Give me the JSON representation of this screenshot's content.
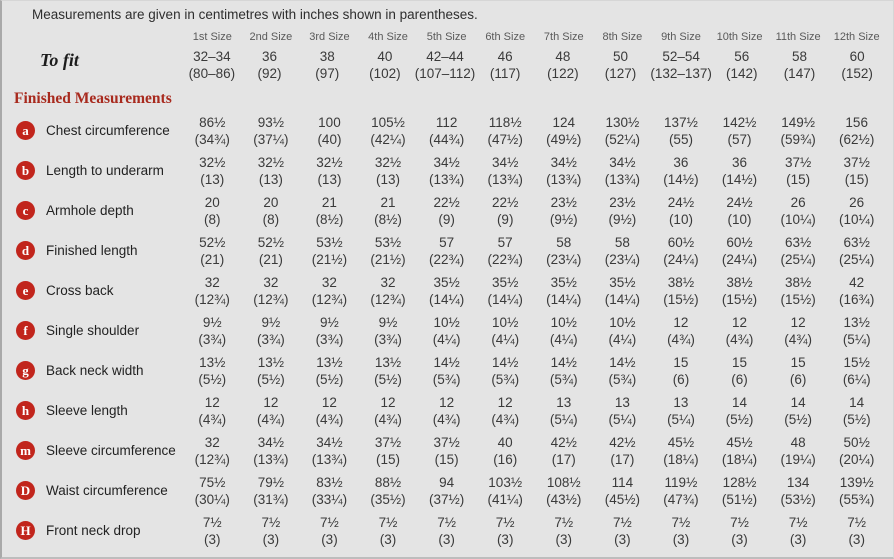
{
  "note": "Measurements are given in centimetres with inches shown in parentheses.",
  "size_headers": [
    "1st Size",
    "2nd Size",
    "3rd Size",
    "4th Size",
    "5th Size",
    "6th Size",
    "7th Size",
    "8th Size",
    "9th Size",
    "10th Size",
    "11th Size",
    "12th Size"
  ],
  "to_fit": {
    "label": "To fit",
    "values": [
      "32–34",
      "36",
      "38",
      "40",
      "42–44",
      "46",
      "48",
      "50",
      "52–54",
      "56",
      "58",
      "60"
    ],
    "parens": [
      "(80–86)",
      "(92)",
      "(97)",
      "(102)",
      "(107–112)",
      "(117)",
      "(122)",
      "(127)",
      "(132–137)",
      "(142)",
      "(147)",
      "(152)"
    ]
  },
  "section_title": "Finished Measurements",
  "rows": [
    {
      "badge": "a",
      "label": "Chest circumference",
      "values": [
        "86½",
        "93½",
        "100",
        "105½",
        "112",
        "118½",
        "124",
        "130½",
        "137½",
        "142½",
        "149½",
        "156"
      ],
      "parens": [
        "(34¾)",
        "(37¼)",
        "(40)",
        "(42¼)",
        "(44¾)",
        "(47½)",
        "(49½)",
        "(52¼)",
        "(55)",
        "(57)",
        "(59¾)",
        "(62½)"
      ]
    },
    {
      "badge": "b",
      "label": "Length to underarm",
      "values": [
        "32½",
        "32½",
        "32½",
        "32½",
        "34½",
        "34½",
        "34½",
        "34½",
        "36",
        "36",
        "37½",
        "37½"
      ],
      "parens": [
        "(13)",
        "(13)",
        "(13)",
        "(13)",
        "(13¾)",
        "(13¾)",
        "(13¾)",
        "(13¾)",
        "(14½)",
        "(14½)",
        "(15)",
        "(15)"
      ]
    },
    {
      "badge": "c",
      "label": "Armhole depth",
      "values": [
        "20",
        "20",
        "21",
        "21",
        "22½",
        "22½",
        "23½",
        "23½",
        "24½",
        "24½",
        "26",
        "26"
      ],
      "parens": [
        "(8)",
        "(8)",
        "(8½)",
        "(8½)",
        "(9)",
        "(9)",
        "(9½)",
        "(9½)",
        "(10)",
        "(10)",
        "(10¼)",
        "(10¼)"
      ]
    },
    {
      "badge": "d",
      "label": "Finished length",
      "values": [
        "52½",
        "52½",
        "53½",
        "53½",
        "57",
        "57",
        "58",
        "58",
        "60½",
        "60½",
        "63½",
        "63½"
      ],
      "parens": [
        "(21)",
        "(21)",
        "(21½)",
        "(21½)",
        "(22¾)",
        "(22¾)",
        "(23¼)",
        "(23¼)",
        "(24¼)",
        "(24¼)",
        "(25¼)",
        "(25¼)"
      ]
    },
    {
      "badge": "e",
      "label": "Cross back",
      "values": [
        "32",
        "32",
        "32",
        "32",
        "35½",
        "35½",
        "35½",
        "35½",
        "38½",
        "38½",
        "38½",
        "42"
      ],
      "parens": [
        "(12¾)",
        "(12¾)",
        "(12¾)",
        "(12¾)",
        "(14¼)",
        "(14¼)",
        "(14¼)",
        "(14¼)",
        "(15½)",
        "(15½)",
        "(15½)",
        "(16¾)"
      ]
    },
    {
      "badge": "f",
      "label": "Single shoulder",
      "values": [
        "9½",
        "9½",
        "9½",
        "9½",
        "10½",
        "10½",
        "10½",
        "10½",
        "12",
        "12",
        "12",
        "13½"
      ],
      "parens": [
        "(3¾)",
        "(3¾)",
        "(3¾)",
        "(3¾)",
        "(4¼)",
        "(4¼)",
        "(4¼)",
        "(4¼)",
        "(4¾)",
        "(4¾)",
        "(4¾)",
        "(5¼)"
      ]
    },
    {
      "badge": "g",
      "label": "Back neck width",
      "values": [
        "13½",
        "13½",
        "13½",
        "13½",
        "14½",
        "14½",
        "14½",
        "14½",
        "15",
        "15",
        "15",
        "15½"
      ],
      "parens": [
        "(5½)",
        "(5½)",
        "(5½)",
        "(5½)",
        "(5¾)",
        "(5¾)",
        "(5¾)",
        "(5¾)",
        "(6)",
        "(6)",
        "(6)",
        "(6¼)"
      ]
    },
    {
      "badge": "h",
      "label": "Sleeve length",
      "values": [
        "12",
        "12",
        "12",
        "12",
        "12",
        "12",
        "13",
        "13",
        "13",
        "14",
        "14",
        "14"
      ],
      "parens": [
        "(4¾)",
        "(4¾)",
        "(4¾)",
        "(4¾)",
        "(4¾)",
        "(4¾)",
        "(5¼)",
        "(5¼)",
        "(5¼)",
        "(5½)",
        "(5½)",
        "(5½)"
      ]
    },
    {
      "badge": "m",
      "label": "Sleeve circumference",
      "values": [
        "32",
        "34½",
        "34½",
        "37½",
        "37½",
        "40",
        "42½",
        "42½",
        "45½",
        "45½",
        "48",
        "50½"
      ],
      "parens": [
        "(12¾)",
        "(13¾)",
        "(13¾)",
        "(15)",
        "(15)",
        "(16)",
        "(17)",
        "(17)",
        "(18¼)",
        "(18¼)",
        "(19¼)",
        "(20¼)"
      ]
    },
    {
      "badge": "D",
      "label": "Waist circumference",
      "values": [
        "75½",
        "79½",
        "83½",
        "88½",
        "94",
        "103½",
        "108½",
        "114",
        "119½",
        "128½",
        "134",
        "139½"
      ],
      "parens": [
        "(30¼)",
        "(31¾)",
        "(33¼)",
        "(35½)",
        "(37½)",
        "(41¼)",
        "(43½)",
        "(45½)",
        "(47¾)",
        "(51½)",
        "(53½)",
        "(55¾)"
      ]
    },
    {
      "badge": "H",
      "label": "Front neck drop",
      "values": [
        "7½",
        "7½",
        "7½",
        "7½",
        "7½",
        "7½",
        "7½",
        "7½",
        "7½",
        "7½",
        "7½",
        "7½"
      ],
      "parens": [
        "(3)",
        "(3)",
        "(3)",
        "(3)",
        "(3)",
        "(3)",
        "(3)",
        "(3)",
        "(3)",
        "(3)",
        "(3)",
        "(3)"
      ]
    }
  ],
  "colors": {
    "background": "#e4e4e4",
    "badge": "#c1251c",
    "heading": "#a82a1e",
    "text": "#3a3a3a",
    "header_gray": "#5a5a5a"
  }
}
